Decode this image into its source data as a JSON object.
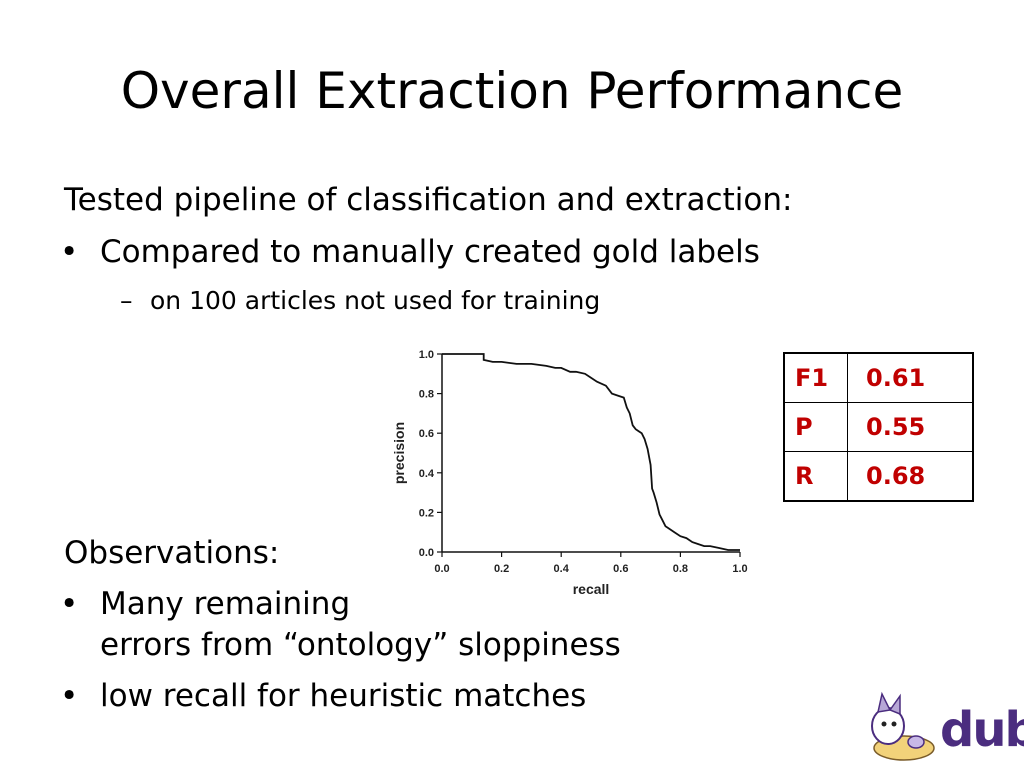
{
  "title": "Overall Extraction Performance",
  "intro": "Tested pipeline of classification and extraction:",
  "bullets1": [
    "Compared to manually created gold labels"
  ],
  "sub_bullet": "on 100 articles not used for training",
  "observations_heading": "Observations:",
  "bullets2": [
    {
      "line1": "Many remaining",
      "line2": "errors from “ontology” sloppiness"
    },
    {
      "line1": "low recall for heuristic matches"
    }
  ],
  "metrics_table": [
    {
      "label": "F1",
      "value": "0.61"
    },
    {
      "label": "P",
      "value": "0.55"
    },
    {
      "label": "R",
      "value": "0.68"
    }
  ],
  "logo_text": "dub",
  "colors": {
    "metrics_text": "#c00000",
    "logo": "#4b2d7f"
  },
  "chart_data": {
    "type": "line",
    "xlabel": "recall",
    "ylabel": "precision",
    "xlim": [
      0.0,
      1.0
    ],
    "ylim": [
      0.0,
      1.0
    ],
    "xticks": [
      "0.0",
      "0.2",
      "0.4",
      "0.6",
      "0.8",
      "1.0"
    ],
    "yticks": [
      "0.0",
      "0.2",
      "0.4",
      "0.6",
      "0.8",
      "1.0"
    ],
    "grid": false,
    "series": [
      {
        "x": [
          0.0,
          0.14,
          0.14,
          0.17,
          0.2,
          0.25,
          0.3,
          0.35,
          0.38,
          0.4,
          0.43,
          0.45,
          0.48,
          0.5,
          0.52,
          0.55,
          0.57,
          0.59,
          0.61,
          0.62,
          0.63,
          0.64,
          0.65,
          0.66,
          0.67,
          0.68,
          0.69,
          0.7,
          0.705,
          0.71,
          0.72,
          0.73,
          0.74,
          0.75,
          0.76,
          0.78,
          0.8,
          0.82,
          0.84,
          0.86,
          0.88,
          0.9,
          0.93,
          0.96,
          1.0
        ],
        "y": [
          1.0,
          1.0,
          0.97,
          0.96,
          0.96,
          0.95,
          0.95,
          0.94,
          0.93,
          0.93,
          0.91,
          0.91,
          0.9,
          0.88,
          0.86,
          0.84,
          0.8,
          0.79,
          0.78,
          0.73,
          0.7,
          0.64,
          0.62,
          0.61,
          0.6,
          0.57,
          0.52,
          0.44,
          0.32,
          0.3,
          0.25,
          0.19,
          0.16,
          0.13,
          0.12,
          0.1,
          0.08,
          0.07,
          0.05,
          0.04,
          0.03,
          0.03,
          0.02,
          0.01,
          0.01
        ]
      }
    ]
  }
}
